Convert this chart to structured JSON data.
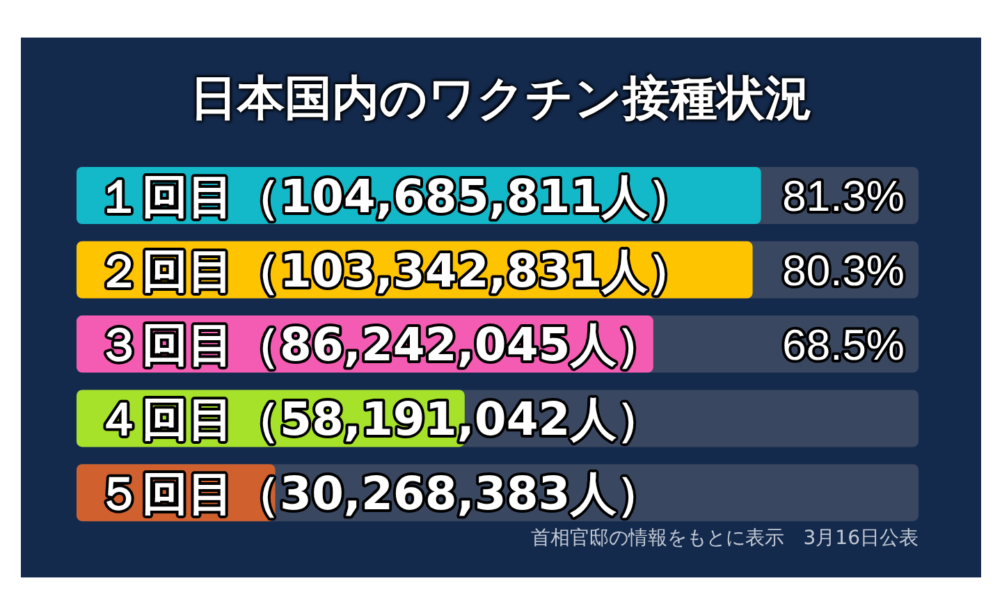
{
  "chart_data": {
    "type": "bar",
    "orientation": "horizontal",
    "title": "日本国内のワクチン接種状況",
    "categories": [
      "１回目（104,685,811人）",
      "２回目（103,342,831人）",
      "３回目（86,242,045人）",
      "４回目（58,191,042人）",
      "５回目（30,268,383人）"
    ],
    "values": [
      81.3,
      80.3,
      68.5,
      46.1,
      23.6
    ],
    "colors": [
      "#13b9c9",
      "#ffc400",
      "#f45cb4",
      "#a6e22a",
      "#d0612f"
    ],
    "value_labels": [
      "81.3%",
      "80.3%",
      "68.5%",
      null,
      null
    ],
    "xlim": [
      0,
      100
    ],
    "tick_labels": "y",
    "grid": false,
    "legend": false,
    "annotations": [
      "首相官邸の情報をもとに表示　3月16日公表"
    ]
  }
}
